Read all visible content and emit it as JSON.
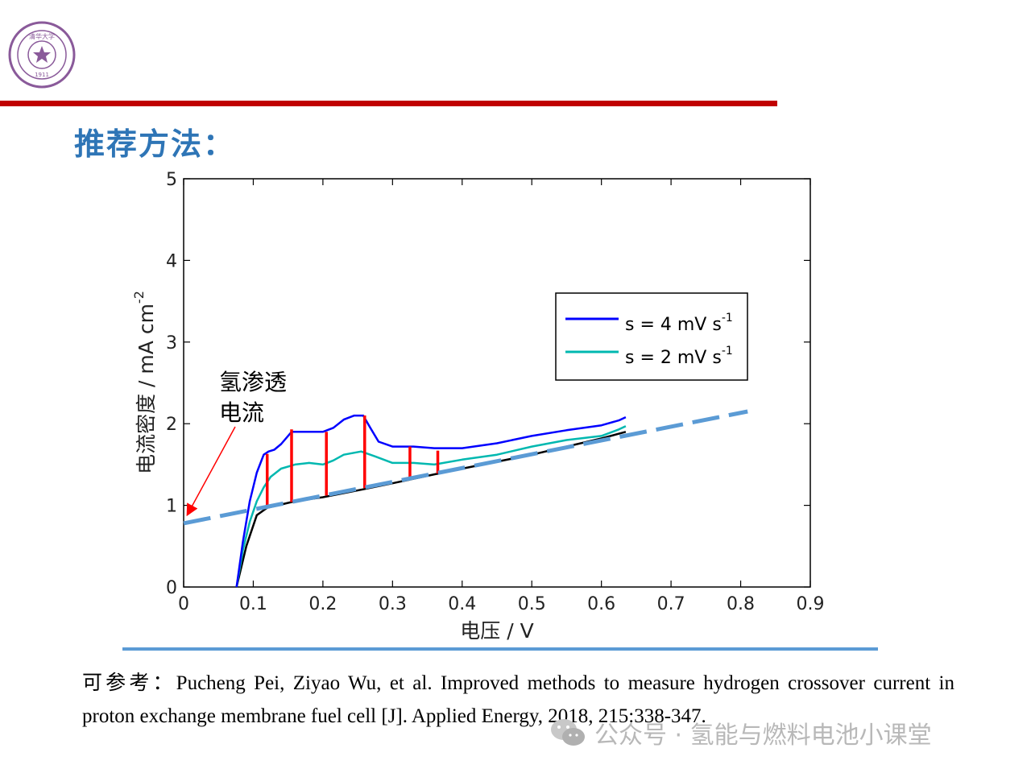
{
  "header": {
    "logo_name": "university-seal",
    "logo_text": [
      "清华大学",
      "TSINGHUA UNIVERSITY",
      "1911"
    ],
    "accent_color": "#c00000"
  },
  "heading": "推荐方法：",
  "chart_data": {
    "type": "line",
    "xlabel": "电压 / V",
    "ylabel": "电流密度 / mA cm",
    "ylabel_sup": "-2",
    "xlim": [
      0,
      0.9
    ],
    "ylim": [
      0,
      5
    ],
    "xticks": [
      "0",
      "0.1",
      "0.2",
      "0.3",
      "0.4",
      "0.5",
      "0.6",
      "0.7",
      "0.8",
      "0.9"
    ],
    "yticks": [
      "0",
      "1",
      "2",
      "3",
      "4",
      "5"
    ],
    "grid": false,
    "legend_position": "upper-right",
    "legend": [
      {
        "label": "s = 4 mV s",
        "sup": "-1",
        "color": "#0000ff"
      },
      {
        "label": "s = 2 mV s",
        "sup": "-1",
        "color": "#00b8b0"
      }
    ],
    "series": [
      {
        "name": "s = 4 mV s-1",
        "color": "#0000ff",
        "x": [
          0.076,
          0.085,
          0.095,
          0.105,
          0.115,
          0.122,
          0.13,
          0.14,
          0.155,
          0.175,
          0.2,
          0.215,
          0.23,
          0.245,
          0.258,
          0.268,
          0.28,
          0.3,
          0.33,
          0.36,
          0.4,
          0.45,
          0.5,
          0.55,
          0.6,
          0.625,
          0.635
        ],
        "y": [
          0.0,
          0.55,
          1.05,
          1.4,
          1.62,
          1.66,
          1.68,
          1.75,
          1.9,
          1.9,
          1.9,
          1.95,
          2.05,
          2.1,
          2.1,
          1.95,
          1.78,
          1.72,
          1.72,
          1.7,
          1.7,
          1.76,
          1.85,
          1.92,
          1.98,
          2.04,
          2.08
        ]
      },
      {
        "name": "s = 2 mV s-1",
        "color": "#00b8b0",
        "x": [
          0.076,
          0.085,
          0.095,
          0.105,
          0.115,
          0.125,
          0.14,
          0.16,
          0.18,
          0.2,
          0.215,
          0.23,
          0.255,
          0.275,
          0.3,
          0.33,
          0.36,
          0.4,
          0.45,
          0.5,
          0.55,
          0.6,
          0.625,
          0.635
        ],
        "y": [
          0.0,
          0.45,
          0.8,
          1.05,
          1.22,
          1.35,
          1.45,
          1.5,
          1.52,
          1.5,
          1.55,
          1.62,
          1.66,
          1.6,
          1.52,
          1.52,
          1.5,
          1.56,
          1.62,
          1.72,
          1.8,
          1.85,
          1.93,
          1.97
        ]
      },
      {
        "name": "baseline",
        "color": "#000000",
        "x": [
          0.076,
          0.09,
          0.105,
          0.12,
          0.16,
          0.2,
          0.26,
          0.3,
          0.36,
          0.4,
          0.5,
          0.6,
          0.635
        ],
        "y": [
          0.0,
          0.5,
          0.88,
          0.97,
          1.05,
          1.1,
          1.2,
          1.27,
          1.38,
          1.45,
          1.62,
          1.82,
          1.9
        ]
      }
    ],
    "fit_line": {
      "x": [
        0.0,
        0.81
      ],
      "y": [
        0.78,
        2.15
      ],
      "color": "#5b9bd5",
      "dashed": true
    },
    "vertical_markers": {
      "color": "#ff0000",
      "x": [
        0.12,
        0.155,
        0.205,
        0.26,
        0.325,
        0.365
      ],
      "y_top": [
        1.63,
        1.93,
        1.9,
        2.1,
        1.72,
        1.67
      ],
      "y_bottom": [
        0.98,
        1.04,
        1.12,
        1.21,
        1.33,
        1.39
      ]
    },
    "annotation": {
      "lines": [
        "氢渗透",
        "电流"
      ],
      "arrow_target_x": 0.005,
      "arrow_target_y": 0.88,
      "arrow_color": "#ff0000"
    }
  },
  "reference": "可参考：Pucheng Pei, Ziyao Wu, et al. Improved methods to measure hydrogen crossover current in proton exchange membrane fuel cell [J]. Applied Energy, 2018, 215:338-347.",
  "watermark": {
    "icon": "wechat-icon",
    "text": "公众号 · 氢能与燃料电池小课堂"
  }
}
